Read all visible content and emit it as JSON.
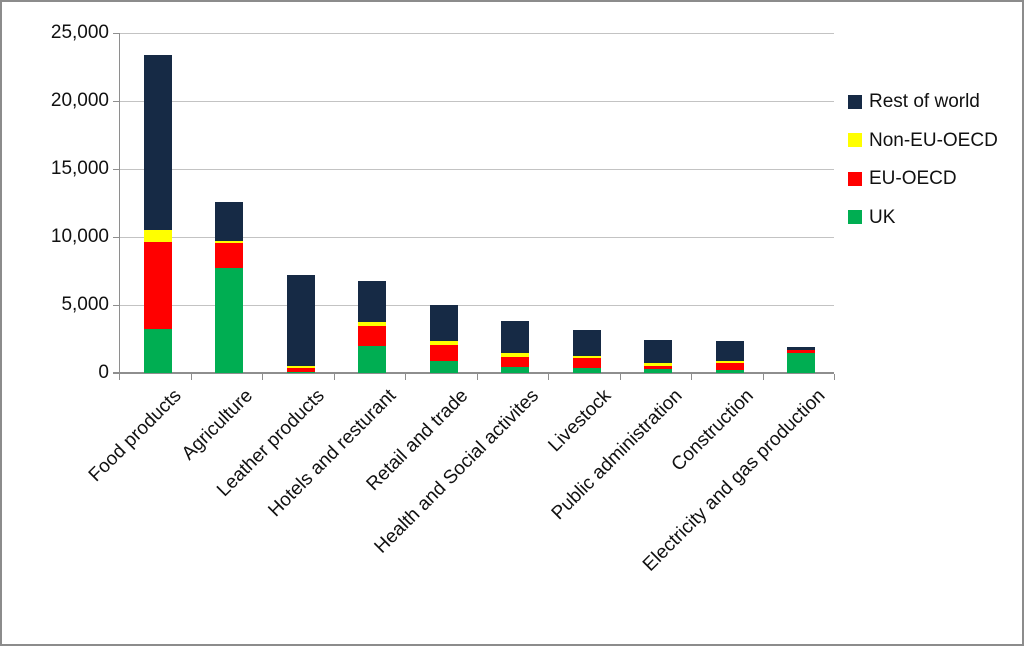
{
  "chart_data": {
    "type": "bar",
    "stacked": true,
    "title": "",
    "xlabel": "",
    "ylabel": "",
    "categories": [
      "Food products",
      "Agriculture",
      "Leather products",
      "Hotels and resturant",
      "Retail and trade",
      "Health and Social activites",
      "Livestock",
      "Public administration",
      "Construction",
      "Electricity and gas production"
    ],
    "series": [
      {
        "name": "UK",
        "color": "#00ae52",
        "values": [
          3200,
          7750,
          50,
          1970,
          860,
          430,
          400,
          270,
          240,
          1440
        ]
      },
      {
        "name": "EU-OECD",
        "color": "#ff0000",
        "values": [
          6400,
          1800,
          350,
          1480,
          1180,
          730,
          700,
          280,
          460,
          220
        ]
      },
      {
        "name": "Non-EU-OECD",
        "color": "#ffff00",
        "values": [
          900,
          150,
          150,
          310,
          300,
          340,
          180,
          170,
          200,
          0
        ]
      },
      {
        "name": "Rest of world",
        "color": "#162a45",
        "values": [
          12900,
          2900,
          6650,
          3040,
          2660,
          2300,
          1900,
          1680,
          1450,
          220
        ]
      }
    ],
    "totals": [
      23400,
      12600,
      7200,
      6800,
      5000,
      3800,
      3180,
      2400,
      2350,
      1880
    ],
    "ylim": [
      0,
      25000
    ],
    "y_tick_step": 5000,
    "y_tick_labels": [
      "0",
      "5,000",
      "10,000",
      "15,000",
      "20,000",
      "25,000"
    ],
    "grid": true,
    "legend": {
      "position": "right",
      "entries": [
        "Rest of world",
        "Non-EU-OECD",
        "EU-OECD",
        "UK"
      ]
    }
  },
  "colors": {
    "uk": "#00ae52",
    "eu_oecd": "#ff0000",
    "non_eu_oecd": "#ffff00",
    "rest_of_world": "#162a45",
    "gridline": "#c3c3c3",
    "axis": "#8e8e8e",
    "frame_border": "#8c8c8c",
    "text": "#111111",
    "background": "#ffffff"
  }
}
